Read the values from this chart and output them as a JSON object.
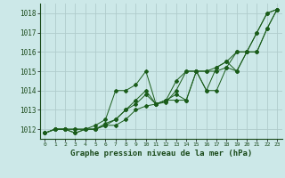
{
  "title": "Graphe pression niveau de la mer (hPa)",
  "bg_color": "#cce8e8",
  "grid_color": "#b0cccc",
  "line_color": "#1a5c1a",
  "xlim": [
    -0.5,
    23.5
  ],
  "ylim": [
    1011.5,
    1018.5
  ],
  "yticks": [
    1012,
    1013,
    1014,
    1015,
    1016,
    1017,
    1018
  ],
  "xticks": [
    0,
    1,
    2,
    3,
    4,
    5,
    6,
    7,
    8,
    9,
    10,
    11,
    12,
    13,
    14,
    15,
    16,
    17,
    18,
    19,
    20,
    21,
    22,
    23
  ],
  "series": [
    [
      1011.8,
      1012.0,
      1012.0,
      1012.0,
      1012.0,
      1012.0,
      1012.2,
      1012.2,
      1012.5,
      1013.0,
      1013.2,
      1013.3,
      1013.4,
      1014.0,
      1015.0,
      1015.0,
      1015.0,
      1015.0,
      1015.2,
      1016.0,
      1016.0,
      1017.0,
      1018.0,
      1018.2
    ],
    [
      1011.8,
      1012.0,
      1012.0,
      1011.8,
      1012.0,
      1012.0,
      1012.2,
      1012.5,
      1013.0,
      1013.5,
      1014.0,
      1013.3,
      1013.5,
      1013.5,
      1013.5,
      1015.0,
      1014.0,
      1015.2,
      1015.5,
      1015.0,
      1016.0,
      1016.0,
      1017.2,
      1018.2
    ],
    [
      1011.8,
      1012.0,
      1012.0,
      1011.8,
      1012.0,
      1012.2,
      1012.5,
      1014.0,
      1014.0,
      1014.3,
      1015.0,
      1013.3,
      1013.5,
      1013.8,
      1013.5,
      1015.0,
      1014.0,
      1014.0,
      1015.2,
      1015.0,
      1016.0,
      1016.0,
      1017.2,
      1018.2
    ],
    [
      1011.8,
      1012.0,
      1012.0,
      1012.0,
      1012.0,
      1012.0,
      1012.3,
      1012.5,
      1013.0,
      1013.3,
      1013.8,
      1013.3,
      1013.5,
      1014.5,
      1015.0,
      1015.0,
      1015.0,
      1015.2,
      1015.5,
      1016.0,
      1016.0,
      1017.0,
      1018.0,
      1018.2
    ]
  ]
}
